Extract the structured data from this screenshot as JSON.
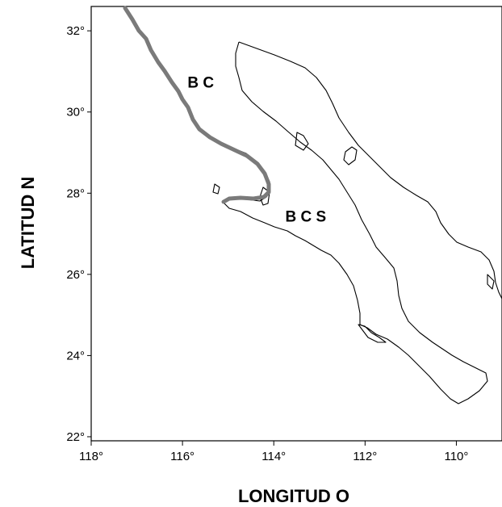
{
  "axes": {
    "x_title": "LONGITUD  O",
    "y_title": "LATITUD N",
    "x_ticks": [
      {
        "value": 118,
        "label": "118°"
      },
      {
        "value": 116,
        "label": "116°"
      },
      {
        "value": 114,
        "label": "114°"
      },
      {
        "value": 112,
        "label": "112°"
      },
      {
        "value": 110,
        "label": "110°"
      }
    ],
    "y_ticks": [
      {
        "value": 32,
        "label": "32°"
      },
      {
        "value": 30,
        "label": "30°"
      },
      {
        "value": 28,
        "label": "28°"
      },
      {
        "value": 26,
        "label": "26°"
      },
      {
        "value": 24,
        "label": "24°"
      },
      {
        "value": 22,
        "label": "22°"
      }
    ],
    "x_range": [
      118,
      109
    ],
    "y_range": [
      21.9,
      32.6
    ]
  },
  "regions": [
    {
      "label": "B C",
      "lon": 115.6,
      "lat": 30.6
    },
    {
      "label": "B C S",
      "lon": 113.3,
      "lat": 27.3
    }
  ],
  "colors": {
    "coastline": "#000000",
    "survey_track": "#7a7a7a",
    "background": "#ffffff"
  }
}
